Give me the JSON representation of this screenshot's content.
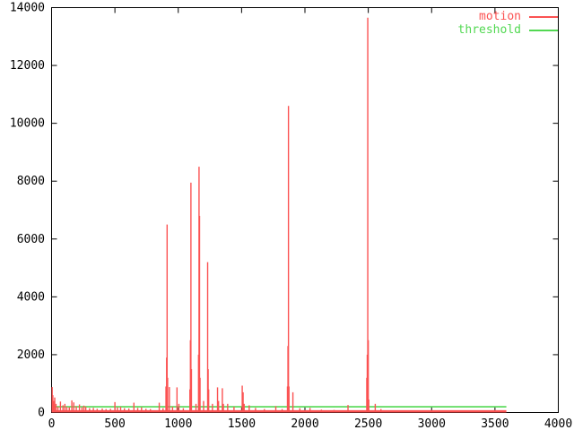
{
  "colors": {
    "motion": "#fb5252",
    "threshold": "#52d852",
    "axis": "#000000",
    "background": "#ffffff"
  },
  "chart_data": {
    "type": "line",
    "title": "",
    "xlabel": "",
    "ylabel": "",
    "xlim": [
      0,
      4000
    ],
    "ylim": [
      0,
      14000
    ],
    "x_ticks": [
      0,
      500,
      1000,
      1500,
      2000,
      2500,
      3000,
      3500,
      4000
    ],
    "y_ticks": [
      0,
      2000,
      4000,
      6000,
      8000,
      10000,
      12000,
      14000
    ],
    "grid": false,
    "legend_position": "top-right-inside",
    "legend": [
      {
        "name": "motion",
        "color": "#fb5252"
      },
      {
        "name": "threshold",
        "color": "#52d852"
      }
    ],
    "series": [
      {
        "name": "motion",
        "style": "impulses",
        "color": "#fb5252",
        "baseline_value": 40,
        "x_start": 0,
        "x_end": 3590,
        "points": [
          [
            5,
            880
          ],
          [
            10,
            600
          ],
          [
            18,
            400
          ],
          [
            25,
            520
          ],
          [
            35,
            300
          ],
          [
            50,
            200
          ],
          [
            70,
            380
          ],
          [
            90,
            250
          ],
          [
            105,
            300
          ],
          [
            120,
            200
          ],
          [
            140,
            180
          ],
          [
            160,
            420
          ],
          [
            175,
            350
          ],
          [
            195,
            220
          ],
          [
            220,
            280
          ],
          [
            240,
            180
          ],
          [
            255,
            240
          ],
          [
            270,
            200
          ],
          [
            300,
            150
          ],
          [
            330,
            160
          ],
          [
            360,
            130
          ],
          [
            400,
            140
          ],
          [
            430,
            120
          ],
          [
            465,
            130
          ],
          [
            500,
            360
          ],
          [
            520,
            180
          ],
          [
            545,
            200
          ],
          [
            575,
            150
          ],
          [
            610,
            140
          ],
          [
            650,
            340
          ],
          [
            680,
            160
          ],
          [
            710,
            180
          ],
          [
            745,
            130
          ],
          [
            780,
            120
          ],
          [
            850,
            340
          ],
          [
            880,
            150
          ],
          [
            903,
            900
          ],
          [
            908,
            1900
          ],
          [
            912,
            6500
          ],
          [
            916,
            1200
          ],
          [
            930,
            880
          ],
          [
            955,
            200
          ],
          [
            990,
            870
          ],
          [
            1005,
            300
          ],
          [
            1040,
            150
          ],
          [
            1092,
            800
          ],
          [
            1096,
            2500
          ],
          [
            1100,
            7950
          ],
          [
            1104,
            1500
          ],
          [
            1140,
            300
          ],
          [
            1160,
            2000
          ],
          [
            1164,
            8500
          ],
          [
            1168,
            6800
          ],
          [
            1172,
            1200
          ],
          [
            1200,
            400
          ],
          [
            1232,
            5200
          ],
          [
            1236,
            1500
          ],
          [
            1240,
            800
          ],
          [
            1270,
            300
          ],
          [
            1310,
            870
          ],
          [
            1318,
            400
          ],
          [
            1348,
            840
          ],
          [
            1356,
            300
          ],
          [
            1390,
            300
          ],
          [
            1440,
            200
          ],
          [
            1505,
            930
          ],
          [
            1512,
            700
          ],
          [
            1520,
            300
          ],
          [
            1560,
            250
          ],
          [
            1610,
            160
          ],
          [
            1680,
            120
          ],
          [
            1770,
            220
          ],
          [
            1820,
            120
          ],
          [
            1862,
            900
          ],
          [
            1866,
            2300
          ],
          [
            1870,
            10600
          ],
          [
            1874,
            900
          ],
          [
            1905,
            700
          ],
          [
            1960,
            150
          ],
          [
            2040,
            160
          ],
          [
            2130,
            100
          ],
          [
            2230,
            90
          ],
          [
            2340,
            260
          ],
          [
            2488,
            1200
          ],
          [
            2492,
            2000
          ],
          [
            2496,
            13650
          ],
          [
            2500,
            2500
          ],
          [
            2504,
            450
          ],
          [
            2555,
            300
          ],
          [
            2600,
            120
          ]
        ]
      },
      {
        "name": "threshold",
        "style": "line",
        "color": "#52d852",
        "value": 200,
        "x_start": 0,
        "x_end": 3590
      }
    ]
  }
}
